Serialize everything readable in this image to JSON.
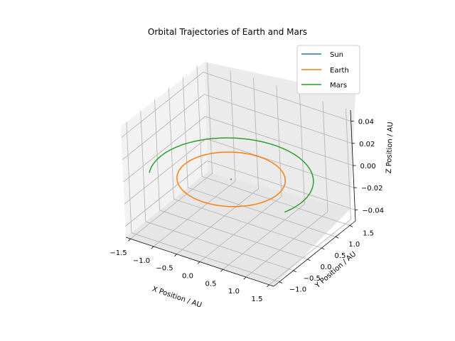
{
  "chart_data": {
    "type": "line",
    "projection": "3d",
    "title": "Orbital Trajectories of Earth and Mars",
    "xlabel": "X Position / AU",
    "ylabel": "Y Position / AU",
    "zlabel": "Z Position / AU",
    "xlim": [
      -1.6,
      1.6
    ],
    "ylim": [
      -1.2,
      1.7
    ],
    "zlim": [
      -0.05,
      0.05
    ],
    "xticks": [
      "−1.5",
      "−1.0",
      "−0.5",
      "0.0",
      "0.5",
      "1.0",
      "1.5"
    ],
    "yticks": [
      "−1.0",
      "−0.5",
      "0.0",
      "0.5",
      "1.0",
      "1.5"
    ],
    "zticks": [
      "−0.04",
      "−0.02",
      "0.00",
      "0.02",
      "0.04"
    ],
    "grid": true,
    "legend": "top-right",
    "series": [
      {
        "name": "Sun",
        "color": "#1f77b4",
        "orbit": {
          "radius_au": 0.0,
          "start_angle_deg": 0,
          "end_angle_deg": 0
        }
      },
      {
        "name": "Earth",
        "color": "#ff7f0e",
        "orbit": {
          "radius_au": 1.0,
          "start_angle_deg": 0,
          "end_angle_deg": 360
        }
      },
      {
        "name": "Mars",
        "color": "#2ca02c",
        "orbit": {
          "radius_au": 1.52,
          "start_angle_deg": -18,
          "end_angle_deg": 205
        }
      }
    ]
  }
}
